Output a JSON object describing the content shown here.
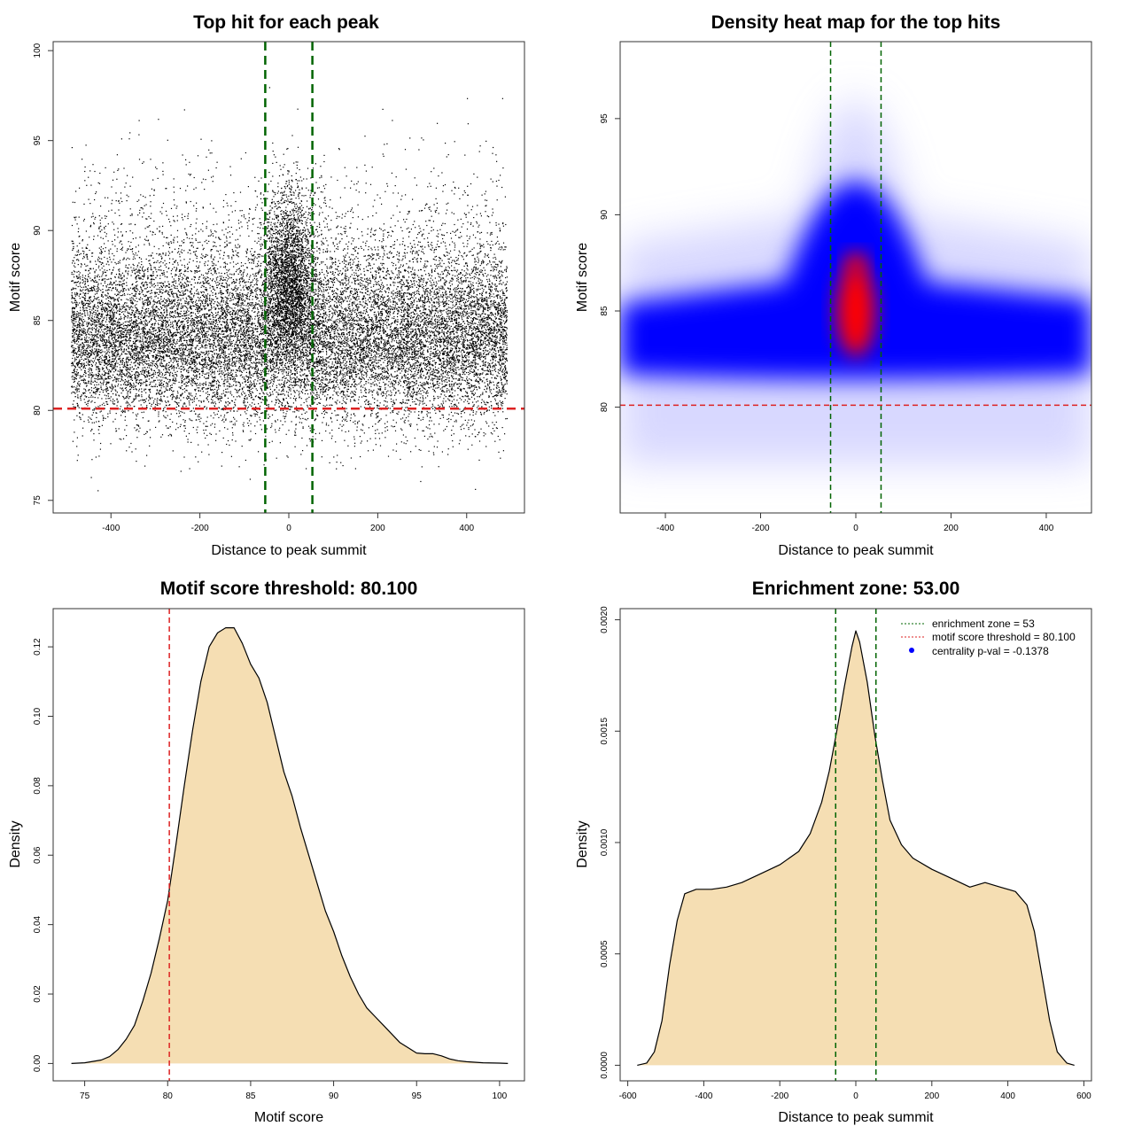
{
  "chart_data": [
    {
      "type": "scatter",
      "title": "Top hit for each peak",
      "xlabel": "Distance to peak summit",
      "ylabel": "Motif score",
      "xlim": [
        -530,
        530
      ],
      "ylim": [
        74.3,
        100.5
      ],
      "xticks": [
        -400,
        -200,
        0,
        200,
        400
      ],
      "yticks": [
        75,
        80,
        85,
        90,
        95,
        100
      ],
      "point_color": "#000000",
      "n_points_approx": 22000,
      "x_range": [
        -490,
        490
      ],
      "score_distribution": "skewed, mode about 84; denser and higher near 0",
      "vlines": [
        {
          "x": -53,
          "color": "#006400"
        },
        {
          "x": 53,
          "color": "#006400"
        }
      ],
      "hlines": [
        {
          "y": 80.1,
          "color": "#dd2222"
        }
      ]
    },
    {
      "type": "heatmap",
      "title": "Density heat map for the top hits",
      "xlabel": "Distance to peak summit",
      "ylabel": "Motif score",
      "xlim": [
        -495,
        495
      ],
      "ylim": [
        74.5,
        99
      ],
      "xticks": [
        -400,
        -200,
        0,
        200,
        400
      ],
      "yticks": [
        80,
        85,
        90,
        95
      ],
      "colors": [
        "#ffffff",
        "#0000ff",
        "#ff0000"
      ],
      "vlines": [
        {
          "x": -53,
          "color": "#006400"
        },
        {
          "x": 53,
          "color": "#006400"
        }
      ],
      "hlines": [
        {
          "y": 80.1,
          "color": "#dd2222"
        }
      ]
    },
    {
      "type": "area",
      "title": "Motif score threshold: 80.100",
      "xlabel": "Motif score",
      "ylabel": "Density",
      "xlim": [
        73.1,
        101.5
      ],
      "ylim": [
        -0.005,
        0.131
      ],
      "xticks": [
        75,
        80,
        85,
        90,
        95,
        100
      ],
      "yticks": [
        0.0,
        0.02,
        0.04,
        0.06,
        0.08,
        0.1,
        0.12
      ],
      "yticklabels": [
        "0.00",
        "0.02",
        "0.04",
        "0.06",
        "0.08",
        "0.10",
        "0.12"
      ],
      "fill": "#f5deb3",
      "x": [
        74.2,
        75,
        76,
        76.5,
        77,
        77.5,
        78,
        78.5,
        79,
        79.5,
        80,
        80.5,
        81,
        81.5,
        82,
        82.5,
        83,
        83.5,
        84,
        84.5,
        85,
        85.5,
        86,
        86.5,
        87,
        87.5,
        88,
        88.5,
        89,
        89.5,
        90,
        90.5,
        91,
        91.5,
        92,
        92.5,
        93,
        93.5,
        94,
        94.5,
        95,
        95.5,
        96,
        96.5,
        97,
        97.5,
        98,
        99,
        100,
        100.5
      ],
      "y": [
        0.0,
        0.0002,
        0.001,
        0.002,
        0.004,
        0.007,
        0.011,
        0.018,
        0.026,
        0.036,
        0.047,
        0.063,
        0.08,
        0.096,
        0.11,
        0.12,
        0.124,
        0.1255,
        0.1255,
        0.121,
        0.115,
        0.111,
        0.104,
        0.094,
        0.084,
        0.077,
        0.068,
        0.06,
        0.052,
        0.044,
        0.038,
        0.031,
        0.025,
        0.02,
        0.016,
        0.0135,
        0.011,
        0.0085,
        0.006,
        0.0045,
        0.003,
        0.0028,
        0.0028,
        0.0022,
        0.0013,
        0.0008,
        0.0005,
        0.0002,
        0.0001,
        0.0
      ],
      "vlines": [
        {
          "x": 80.1,
          "color": "#dd2222"
        }
      ]
    },
    {
      "type": "area",
      "title": "Enrichment zone: 53.00",
      "xlabel": "Distance to peak summit",
      "ylabel": "Density",
      "xlim": [
        -620,
        620
      ],
      "ylim": [
        -7e-05,
        0.00205
      ],
      "xticks": [
        -600,
        -400,
        -200,
        0,
        200,
        400,
        600
      ],
      "yticks": [
        0.0,
        0.0005,
        0.001,
        0.0015,
        0.002
      ],
      "yticklabels": [
        "0.0000",
        "0.0005",
        "0.0010",
        "0.0015",
        "0.0020"
      ],
      "fill": "#f5deb3",
      "x": [
        -575,
        -550,
        -530,
        -510,
        -490,
        -470,
        -450,
        -420,
        -380,
        -340,
        -300,
        -250,
        -200,
        -150,
        -120,
        -90,
        -70,
        -50,
        -30,
        -10,
        0,
        10,
        30,
        50,
        70,
        90,
        120,
        150,
        200,
        250,
        300,
        340,
        380,
        420,
        450,
        470,
        490,
        510,
        530,
        555,
        575
      ],
      "y": [
        0.0,
        1e-05,
        6e-05,
        0.0002,
        0.00045,
        0.00065,
        0.00077,
        0.00079,
        0.00079,
        0.0008,
        0.00082,
        0.00086,
        0.0009,
        0.00096,
        0.00104,
        0.00118,
        0.00132,
        0.0015,
        0.0017,
        0.00188,
        0.00195,
        0.0019,
        0.00172,
        0.00148,
        0.00128,
        0.0011,
        0.00099,
        0.00093,
        0.00088,
        0.00084,
        0.0008,
        0.00082,
        0.0008,
        0.00078,
        0.00072,
        0.0006,
        0.0004,
        0.0002,
        6e-05,
        1e-05,
        0.0
      ],
      "vlines": [
        {
          "x": -53,
          "color": "#006400"
        },
        {
          "x": 53,
          "color": "#006400"
        }
      ],
      "legend": {
        "position": "top-right",
        "entries": [
          {
            "label": "enrichment zone = 53",
            "color": "#006400",
            "style": "dotted-line"
          },
          {
            "label": "motif score threshold = 80.100",
            "color": "#dd2222",
            "style": "dotted-line"
          },
          {
            "label": "centrality p-val = -0.1378",
            "color": "#0000ff",
            "style": "point"
          }
        ]
      }
    }
  ]
}
